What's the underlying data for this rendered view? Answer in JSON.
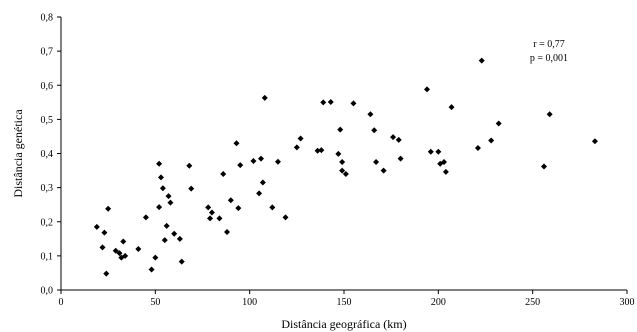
{
  "chart_data": {
    "type": "scatter",
    "xlabel": "Distância geográfica (km)",
    "ylabel": "Distância genética",
    "xlim": [
      0,
      300
    ],
    "ylim": [
      0,
      0.8
    ],
    "x_ticks": [
      0,
      50,
      100,
      150,
      200,
      250,
      300
    ],
    "y_ticks": [
      0,
      0.1,
      0.2,
      0.3,
      0.4,
      0.5,
      0.6,
      0.7,
      0.8
    ],
    "x_tick_labels": [
      "0",
      "50",
      "100",
      "150",
      "200",
      "250",
      "300"
    ],
    "y_tick_labels": [
      "0,0",
      "0,1",
      "0,2",
      "0,3",
      "0,4",
      "0,5",
      "0,6",
      "0,7",
      "0,8"
    ],
    "grid": false,
    "marker_color": "#000000",
    "annotations": [
      "r = 0,77",
      "p = 0,001"
    ],
    "points": [
      {
        "x": 19,
        "y": 0.185
      },
      {
        "x": 22,
        "y": 0.125
      },
      {
        "x": 23,
        "y": 0.168
      },
      {
        "x": 24,
        "y": 0.048
      },
      {
        "x": 25,
        "y": 0.238
      },
      {
        "x": 29,
        "y": 0.115
      },
      {
        "x": 31,
        "y": 0.108
      },
      {
        "x": 32,
        "y": 0.095
      },
      {
        "x": 33,
        "y": 0.142
      },
      {
        "x": 34,
        "y": 0.1
      },
      {
        "x": 41,
        "y": 0.12
      },
      {
        "x": 45,
        "y": 0.213
      },
      {
        "x": 48,
        "y": 0.06
      },
      {
        "x": 50,
        "y": 0.095
      },
      {
        "x": 52,
        "y": 0.243
      },
      {
        "x": 52,
        "y": 0.37
      },
      {
        "x": 53,
        "y": 0.33
      },
      {
        "x": 54,
        "y": 0.298
      },
      {
        "x": 55,
        "y": 0.146
      },
      {
        "x": 56,
        "y": 0.188
      },
      {
        "x": 57,
        "y": 0.275
      },
      {
        "x": 58,
        "y": 0.256
      },
      {
        "x": 60,
        "y": 0.165
      },
      {
        "x": 63,
        "y": 0.15
      },
      {
        "x": 64,
        "y": 0.083
      },
      {
        "x": 68,
        "y": 0.364
      },
      {
        "x": 69,
        "y": 0.297
      },
      {
        "x": 78,
        "y": 0.242
      },
      {
        "x": 79,
        "y": 0.21
      },
      {
        "x": 80,
        "y": 0.227
      },
      {
        "x": 84,
        "y": 0.21
      },
      {
        "x": 86,
        "y": 0.34
      },
      {
        "x": 88,
        "y": 0.17
      },
      {
        "x": 90,
        "y": 0.263
      },
      {
        "x": 93,
        "y": 0.43
      },
      {
        "x": 94,
        "y": 0.24
      },
      {
        "x": 95,
        "y": 0.366
      },
      {
        "x": 102,
        "y": 0.378
      },
      {
        "x": 105,
        "y": 0.283
      },
      {
        "x": 106,
        "y": 0.385
      },
      {
        "x": 107,
        "y": 0.315
      },
      {
        "x": 108,
        "y": 0.563
      },
      {
        "x": 112,
        "y": 0.242
      },
      {
        "x": 115,
        "y": 0.376
      },
      {
        "x": 119,
        "y": 0.213
      },
      {
        "x": 125,
        "y": 0.418
      },
      {
        "x": 127,
        "y": 0.444
      },
      {
        "x": 136,
        "y": 0.408
      },
      {
        "x": 138,
        "y": 0.41
      },
      {
        "x": 139,
        "y": 0.55
      },
      {
        "x": 143,
        "y": 0.551
      },
      {
        "x": 147,
        "y": 0.399
      },
      {
        "x": 148,
        "y": 0.47
      },
      {
        "x": 149,
        "y": 0.375
      },
      {
        "x": 149,
        "y": 0.35
      },
      {
        "x": 151,
        "y": 0.34
      },
      {
        "x": 155,
        "y": 0.547
      },
      {
        "x": 164,
        "y": 0.515
      },
      {
        "x": 166,
        "y": 0.468
      },
      {
        "x": 167,
        "y": 0.375
      },
      {
        "x": 171,
        "y": 0.35
      },
      {
        "x": 176,
        "y": 0.448
      },
      {
        "x": 179,
        "y": 0.44
      },
      {
        "x": 180,
        "y": 0.385
      },
      {
        "x": 194,
        "y": 0.588
      },
      {
        "x": 196,
        "y": 0.405
      },
      {
        "x": 200,
        "y": 0.405
      },
      {
        "x": 201,
        "y": 0.37
      },
      {
        "x": 203,
        "y": 0.375
      },
      {
        "x": 204,
        "y": 0.346
      },
      {
        "x": 207,
        "y": 0.536
      },
      {
        "x": 221,
        "y": 0.416
      },
      {
        "x": 223,
        "y": 0.672
      },
      {
        "x": 228,
        "y": 0.438
      },
      {
        "x": 232,
        "y": 0.488
      },
      {
        "x": 256,
        "y": 0.362
      },
      {
        "x": 259,
        "y": 0.515
      },
      {
        "x": 283,
        "y": 0.436
      }
    ]
  }
}
